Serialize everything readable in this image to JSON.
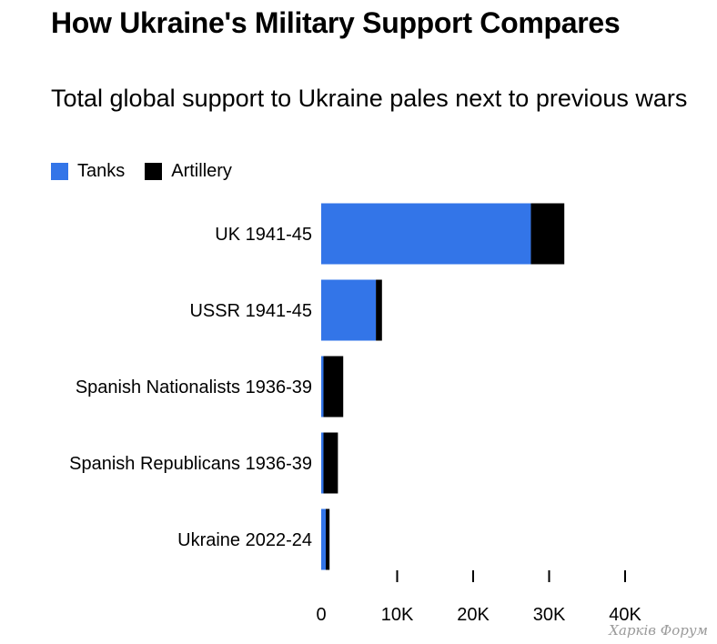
{
  "chart_data": {
    "type": "bar",
    "orientation": "horizontal",
    "stacked": true,
    "title": "How Ukraine's Military Support Compares",
    "subtitle": "Total global support to Ukraine pales next to previous wars",
    "categories": [
      "UK 1941-45",
      "USSR 1941-45",
      "Spanish Nationalists 1936-39",
      "Spanish Republicans 1936-39",
      "Ukraine 2022-24"
    ],
    "series": [
      {
        "name": "Tanks",
        "color": "#3375e8",
        "values": [
          27600,
          7200,
          300,
          300,
          600
        ]
      },
      {
        "name": "Artillery",
        "color": "#000000",
        "values": [
          4400,
          800,
          2600,
          1900,
          500
        ]
      }
    ],
    "xlim": [
      0,
      40000
    ],
    "xticks": [
      0,
      10000,
      20000,
      30000,
      40000
    ],
    "xtick_labels": [
      "0",
      "10K",
      "20K",
      "30K",
      "40K"
    ],
    "legend_position": "top-left",
    "grid": false
  },
  "watermark": "Харків Форум"
}
